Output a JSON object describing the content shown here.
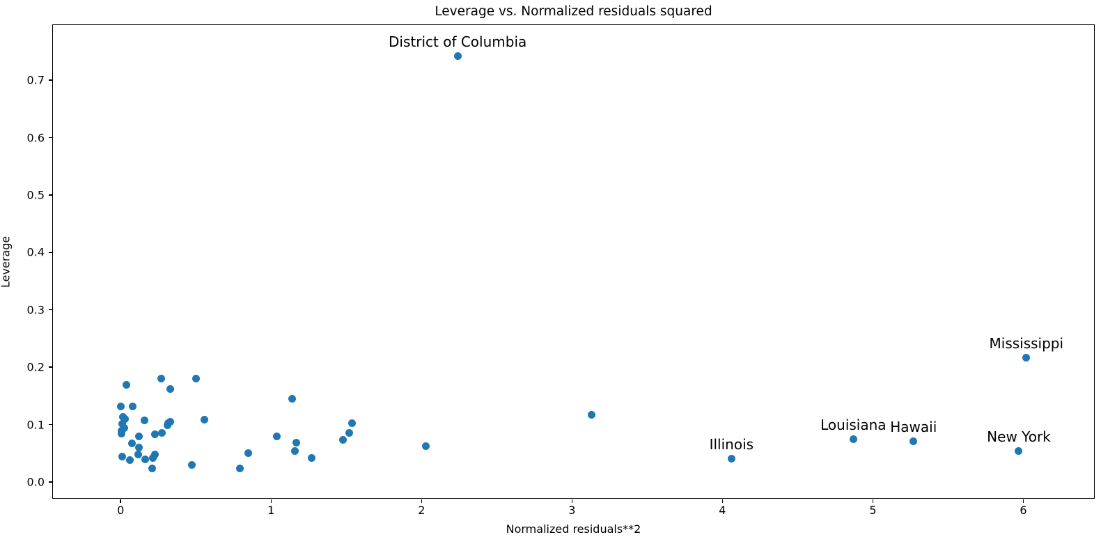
{
  "chart_data": {
    "type": "scatter",
    "title": "Leverage vs. Normalized residuals squared",
    "xlabel": "Normalized residuals**2",
    "ylabel": "Leverage",
    "xlim": [
      -0.45,
      6.47
    ],
    "ylim": [
      -0.028,
      0.796
    ],
    "xticks": [
      0,
      1,
      2,
      3,
      4,
      5,
      6
    ],
    "yticks": [
      0.0,
      0.1,
      0.2,
      0.3,
      0.4,
      0.5,
      0.6,
      0.7
    ],
    "grid": false,
    "legend": null,
    "marker_color": "#1f77b4",
    "points": [
      {
        "x": 0.04,
        "y": 0.169
      },
      {
        "x": 0.27,
        "y": 0.18
      },
      {
        "x": 0.5,
        "y": 0.18
      },
      {
        "x": 0.33,
        "y": 0.162
      },
      {
        "x": 0.0,
        "y": 0.131
      },
      {
        "x": 0.08,
        "y": 0.131
      },
      {
        "x": 0.03,
        "y": 0.11
      },
      {
        "x": 0.017,
        "y": 0.113
      },
      {
        "x": 0.01,
        "y": 0.101
      },
      {
        "x": 0.025,
        "y": 0.094
      },
      {
        "x": 0.006,
        "y": 0.089
      },
      {
        "x": 0.005,
        "y": 0.084
      },
      {
        "x": 0.16,
        "y": 0.107
      },
      {
        "x": 0.33,
        "y": 0.105
      },
      {
        "x": 0.315,
        "y": 0.103
      },
      {
        "x": 0.31,
        "y": 0.099
      },
      {
        "x": 0.23,
        "y": 0.083
      },
      {
        "x": 0.275,
        "y": 0.086
      },
      {
        "x": 0.555,
        "y": 0.108
      },
      {
        "x": 0.12,
        "y": 0.079
      },
      {
        "x": 0.075,
        "y": 0.067
      },
      {
        "x": 0.12,
        "y": 0.06
      },
      {
        "x": 0.115,
        "y": 0.048
      },
      {
        "x": 0.012,
        "y": 0.044
      },
      {
        "x": 0.06,
        "y": 0.038
      },
      {
        "x": 0.165,
        "y": 0.039
      },
      {
        "x": 0.215,
        "y": 0.042
      },
      {
        "x": 0.23,
        "y": 0.048
      },
      {
        "x": 0.21,
        "y": 0.024
      },
      {
        "x": 0.475,
        "y": 0.03
      },
      {
        "x": 0.795,
        "y": 0.024
      },
      {
        "x": 0.85,
        "y": 0.05
      },
      {
        "x": 1.04,
        "y": 0.079
      },
      {
        "x": 1.14,
        "y": 0.145
      },
      {
        "x": 1.16,
        "y": 0.054
      },
      {
        "x": 1.17,
        "y": 0.069
      },
      {
        "x": 1.27,
        "y": 0.042
      },
      {
        "x": 1.48,
        "y": 0.073
      },
      {
        "x": 1.52,
        "y": 0.085
      },
      {
        "x": 1.54,
        "y": 0.102
      },
      {
        "x": 2.03,
        "y": 0.062
      },
      {
        "x": 3.13,
        "y": 0.117
      },
      {
        "x": 2.24,
        "y": 0.742,
        "label": "District of Columbia"
      },
      {
        "x": 4.06,
        "y": 0.041,
        "label": "Illinois"
      },
      {
        "x": 4.87,
        "y": 0.075,
        "label": "Louisiana"
      },
      {
        "x": 5.27,
        "y": 0.071,
        "label": "Hawaii"
      },
      {
        "x": 5.97,
        "y": 0.054,
        "label": "New York"
      },
      {
        "x": 6.02,
        "y": 0.217,
        "label": "Mississippi"
      }
    ]
  }
}
